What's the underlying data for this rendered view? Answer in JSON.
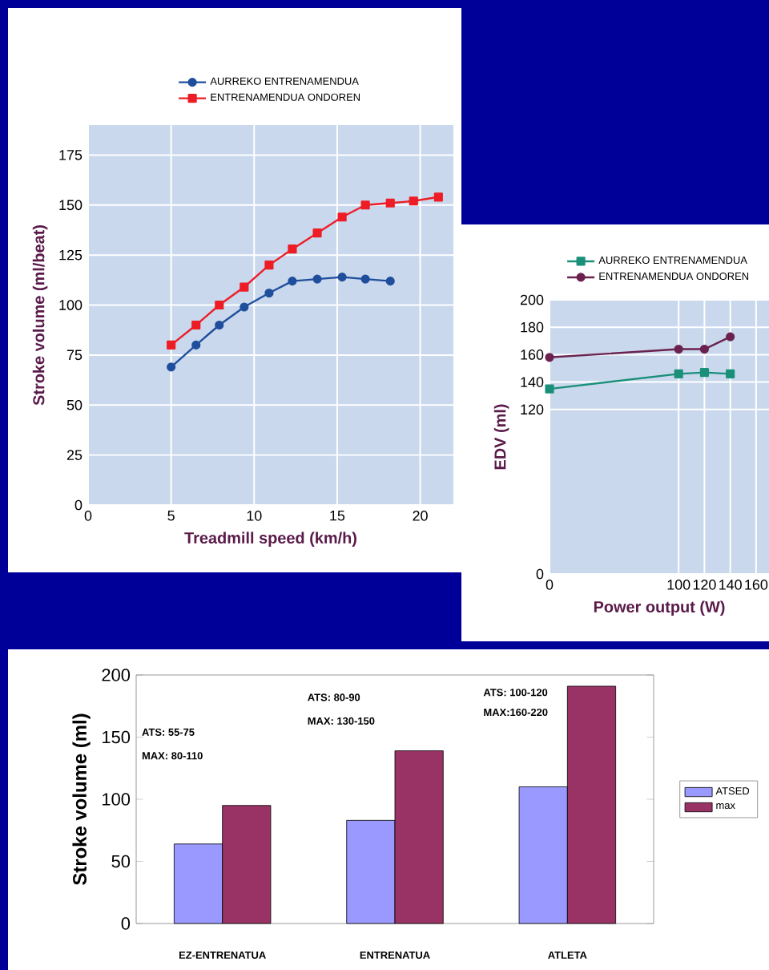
{
  "chart_data": [
    {
      "type": "line",
      "xlabel": "Treadmill speed (km/h)",
      "ylabel": "Stroke volume (ml/beat)",
      "xlim": [
        0,
        22
      ],
      "ylim": [
        0,
        190
      ],
      "xticks": [
        0,
        5,
        10,
        15,
        20
      ],
      "yticks": [
        0,
        25,
        50,
        75,
        100,
        125,
        150,
        175
      ],
      "grid": true,
      "legend": "top",
      "series": [
        {
          "name": "AURREKO ENTRENAMENDUA",
          "color": "#1f4e9c",
          "marker": "circle",
          "x": [
            5,
            6.5,
            7.9,
            9.4,
            10.9,
            12.3,
            13.8,
            15.3,
            16.7,
            18.2
          ],
          "values": [
            69,
            80,
            90,
            99,
            106,
            112,
            113,
            114,
            113,
            112
          ]
        },
        {
          "name": "ENTRENAMENDUA ONDOREN",
          "color": "#ee1c25",
          "marker": "square",
          "x": [
            5,
            6.5,
            7.9,
            9.4,
            10.9,
            12.3,
            13.8,
            15.3,
            16.7,
            18.2,
            19.6,
            21.1
          ],
          "values": [
            80,
            90,
            100,
            109,
            120,
            128,
            136,
            144,
            150,
            151,
            152,
            154
          ]
        }
      ]
    },
    {
      "type": "line",
      "xlabel": "Power output (W)",
      "ylabel": "EDV (ml)",
      "xlim": [
        0,
        170
      ],
      "ylim": [
        0,
        200
      ],
      "xticks": [
        0,
        100,
        120,
        140,
        160
      ],
      "yticks": [
        0,
        120,
        140,
        160,
        180,
        200
      ],
      "grid": true,
      "legend": "top",
      "series": [
        {
          "name": "AURREKO ENTRENAMENDUA",
          "color": "#1a8f7a",
          "marker": "square",
          "x": [
            0,
            100,
            120,
            140
          ],
          "values": [
            135,
            146,
            147,
            146
          ]
        },
        {
          "name": "ENTRENAMENDUA ONDOREN",
          "color": "#6b2250",
          "marker": "circle",
          "x": [
            0,
            100,
            120,
            140
          ],
          "values": [
            158,
            164,
            164,
            173
          ]
        }
      ]
    },
    {
      "type": "bar",
      "categories": [
        "EZ-ENTRENATUA",
        "ENTRENATUA",
        "ATLETA"
      ],
      "ylabel": "Stroke volume (ml)",
      "ylim": [
        0,
        200
      ],
      "yticks": [
        0,
        50,
        100,
        150,
        200
      ],
      "legend": "right",
      "series": [
        {
          "name": "ATSED",
          "color": "#9999ff",
          "values": [
            64,
            83,
            110
          ]
        },
        {
          "name": "max",
          "color": "#993366",
          "values": [
            95,
            139,
            191
          ]
        }
      ],
      "annotations": [
        "ATS: 55-75",
        "MAX: 80-110",
        "ATS: 80-90",
        "MAX: 130-150",
        "ATS: 100-120",
        "MAX:160-220"
      ]
    }
  ]
}
